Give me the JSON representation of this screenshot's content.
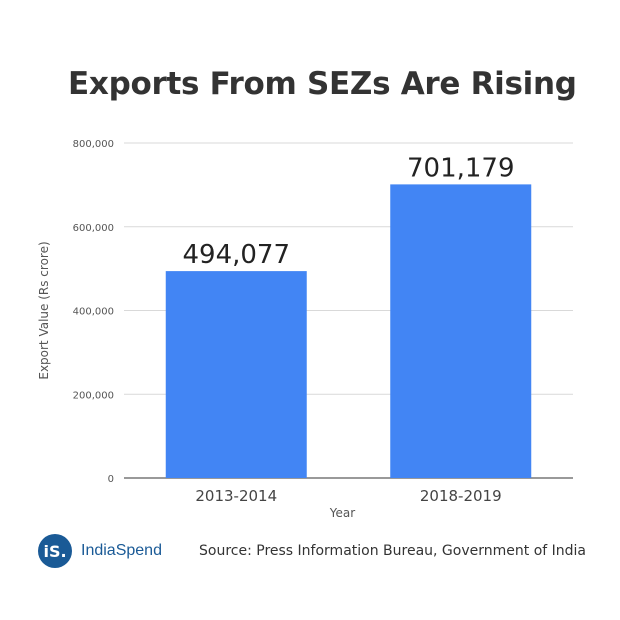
{
  "chart_data": {
    "type": "bar",
    "title": "Exports From SEZs Are Rising",
    "categories": [
      "2013-2014",
      "2018-2019"
    ],
    "values": [
      494077,
      701179
    ],
    "value_labels": [
      "494,077",
      "701,179"
    ],
    "xlabel": "Year",
    "ylabel": "Export Value (Rs crore)",
    "ylim": [
      0,
      800000
    ],
    "yticks": [
      0,
      200000,
      400000,
      600000,
      800000
    ],
    "ytick_labels": [
      "0",
      "200,000",
      "400,000",
      "600,000",
      "800,000"
    ],
    "grid": true,
    "bar_color": "#4285f4"
  },
  "footer": {
    "logo_mark": "iS.",
    "logo_text": "IndiaSpend",
    "source": "Source: Press Information Bureau, Government of India"
  }
}
